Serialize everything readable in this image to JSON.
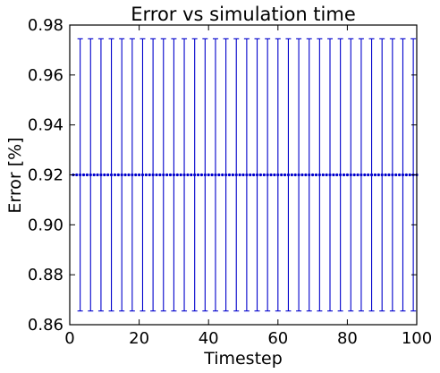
{
  "chart_data": {
    "type": "scatter",
    "title": "Error vs simulation time",
    "xlabel": "Timestep",
    "ylabel": "Error [%]",
    "xlim": [
      0,
      100
    ],
    "ylim": [
      0.86,
      0.98
    ],
    "xticks": [
      0,
      20,
      40,
      60,
      80,
      100
    ],
    "yticks": [
      0.86,
      0.88,
      0.9,
      0.92,
      0.94,
      0.96,
      0.98
    ],
    "xtick_labels": [
      "0",
      "20",
      "40",
      "60",
      "80",
      "100"
    ],
    "ytick_labels": [
      "0.86",
      "0.88",
      "0.90",
      "0.92",
      "0.94",
      "0.96",
      "0.98"
    ],
    "grid": false,
    "legend": "none",
    "series": [
      {
        "color": "#0000cc",
        "marker": "point",
        "x": [
          1,
          2,
          3,
          4,
          5,
          6,
          7,
          8,
          9,
          10,
          11,
          12,
          13,
          14,
          15,
          16,
          17,
          18,
          19,
          20,
          21,
          22,
          23,
          24,
          25,
          26,
          27,
          28,
          29,
          30,
          31,
          32,
          33,
          34,
          35,
          36,
          37,
          38,
          39,
          40,
          41,
          42,
          43,
          44,
          45,
          46,
          47,
          48,
          49,
          50,
          51,
          52,
          53,
          54,
          55,
          56,
          57,
          58,
          59,
          60,
          61,
          62,
          63,
          64,
          65,
          66,
          67,
          68,
          69,
          70,
          71,
          72,
          73,
          74,
          75,
          76,
          77,
          78,
          79,
          80,
          81,
          82,
          83,
          84,
          85,
          86,
          87,
          88,
          89,
          90,
          91,
          92,
          93,
          94,
          95,
          96,
          97,
          98,
          99,
          100
        ],
        "y_constant": 0.92
      }
    ],
    "error_bars": {
      "color": "#0000cc",
      "x": [
        3,
        6,
        9,
        12,
        15,
        18,
        21,
        24,
        27,
        30,
        33,
        36,
        39,
        42,
        45,
        48,
        51,
        54,
        57,
        60,
        63,
        66,
        69,
        72,
        75,
        78,
        81,
        84,
        87,
        90,
        93,
        96,
        99
      ],
      "center": 0.92,
      "lower": 0.8655,
      "upper": 0.9745
    }
  }
}
